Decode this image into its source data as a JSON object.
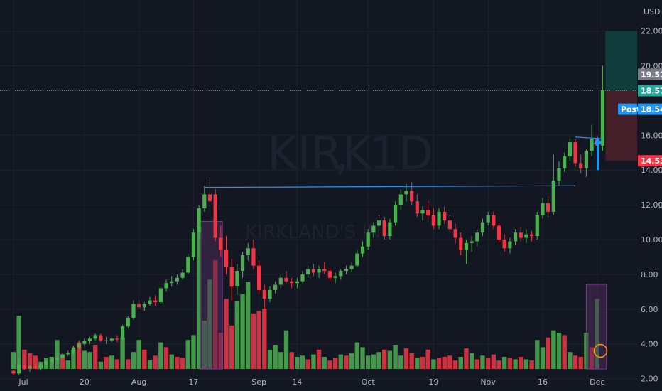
{
  "chart_data": {
    "type": "candlestick",
    "symbol": "KIRK",
    "interval": "1D",
    "company": "KIRKLAND'S INC",
    "currency": "USD",
    "y_ticks": [
      "2.00",
      "4.00",
      "6.00",
      "8.00",
      "10.00",
      "12.00",
      "14.00",
      "16.00",
      "20.00",
      "22.00"
    ],
    "x_ticks": [
      {
        "label": "Jul",
        "i": 0
      },
      {
        "label": "20",
        "i": 13
      },
      {
        "label": "Aug",
        "i": 23
      },
      {
        "label": "17",
        "i": 33
      },
      {
        "label": "Sep",
        "i": 45
      },
      {
        "label": "14",
        "i": 52
      },
      {
        "label": "Oct",
        "i": 65
      },
      {
        "label": "19",
        "i": 77
      },
      {
        "label": "Nov",
        "i": 87
      },
      {
        "label": "16",
        "i": 97
      },
      {
        "label": "Dec",
        "i": 107
      }
    ],
    "candles": [
      [
        2.45,
        2.5,
        2.2,
        2.3
      ],
      [
        2.3,
        3.2,
        2.2,
        2.8
      ],
      [
        2.8,
        2.9,
        2.5,
        2.6
      ],
      [
        2.6,
        2.8,
        2.4,
        2.7
      ],
      [
        2.7,
        2.85,
        2.55,
        2.65
      ],
      [
        2.65,
        2.9,
        2.5,
        2.8
      ],
      [
        2.8,
        3.1,
        2.7,
        3.0
      ],
      [
        3.0,
        3.2,
        2.9,
        3.1
      ],
      [
        3.1,
        3.3,
        3.0,
        3.2
      ],
      [
        3.2,
        3.5,
        3.1,
        3.4
      ],
      [
        3.4,
        3.6,
        3.3,
        3.5
      ],
      [
        3.5,
        3.9,
        3.4,
        3.8
      ],
      [
        3.8,
        4.2,
        3.7,
        4.0
      ],
      [
        4.0,
        4.3,
        3.9,
        4.15
      ],
      [
        4.15,
        4.4,
        4.0,
        4.3
      ],
      [
        4.3,
        4.6,
        4.2,
        4.5
      ],
      [
        4.5,
        4.6,
        4.1,
        4.2
      ],
      [
        4.2,
        4.4,
        4.0,
        4.2
      ],
      [
        4.2,
        4.4,
        4.1,
        4.3
      ],
      [
        4.3,
        4.5,
        4.1,
        4.25
      ],
      [
        4.25,
        5.1,
        4.2,
        5.0
      ],
      [
        5.0,
        5.6,
        4.9,
        5.5
      ],
      [
        5.5,
        6.5,
        5.4,
        6.3
      ],
      [
        6.3,
        6.5,
        6.0,
        6.1
      ],
      [
        6.1,
        6.4,
        5.9,
        6.3
      ],
      [
        6.3,
        6.7,
        6.2,
        6.5
      ],
      [
        6.5,
        6.8,
        6.2,
        6.4
      ],
      [
        6.4,
        7.3,
        6.3,
        7.2
      ],
      [
        7.2,
        7.7,
        7.0,
        7.5
      ],
      [
        7.5,
        7.9,
        7.3,
        7.6
      ],
      [
        7.6,
        8.0,
        7.4,
        7.8
      ],
      [
        7.8,
        8.3,
        7.7,
        8.1
      ],
      [
        8.1,
        9.2,
        8.0,
        9.0
      ],
      [
        9.0,
        10.6,
        8.8,
        10.4
      ],
      [
        10.4,
        12.0,
        10.2,
        11.8
      ],
      [
        11.8,
        13.1,
        11.6,
        12.6
      ],
      [
        12.6,
        13.6,
        11.9,
        12.2
      ],
      [
        12.6,
        12.9,
        9.9,
        10.1
      ],
      [
        10.1,
        10.8,
        9.0,
        9.4
      ],
      [
        9.4,
        10.2,
        8.0,
        8.4
      ],
      [
        8.4,
        8.9,
        6.5,
        7.3
      ],
      [
        7.3,
        8.6,
        6.8,
        8.2
      ],
      [
        8.2,
        9.3,
        7.8,
        9.1
      ],
      [
        9.1,
        9.8,
        8.8,
        9.5
      ],
      [
        9.5,
        10.0,
        8.3,
        8.5
      ],
      [
        8.5,
        8.8,
        6.9,
        7.1
      ],
      [
        7.1,
        7.4,
        5.7,
        6.6
      ],
      [
        6.6,
        7.3,
        6.4,
        7.1
      ],
      [
        7.1,
        7.6,
        6.9,
        7.4
      ],
      [
        7.4,
        8.0,
        7.2,
        7.8
      ],
      [
        7.8,
        8.2,
        7.5,
        7.6
      ],
      [
        7.6,
        7.8,
        7.2,
        7.5
      ],
      [
        7.5,
        7.8,
        7.2,
        7.6
      ],
      [
        7.6,
        8.2,
        7.5,
        8.0
      ],
      [
        8.0,
        8.5,
        7.8,
        8.3
      ],
      [
        8.3,
        8.6,
        7.9,
        8.1
      ],
      [
        8.1,
        8.5,
        7.8,
        8.3
      ],
      [
        8.3,
        8.7,
        8.0,
        8.2
      ],
      [
        8.2,
        8.4,
        7.6,
        7.8
      ],
      [
        7.8,
        8.1,
        7.5,
        7.9
      ],
      [
        7.9,
        8.3,
        7.7,
        8.2
      ],
      [
        8.2,
        8.5,
        8.0,
        8.3
      ],
      [
        8.3,
        8.7,
        8.1,
        8.5
      ],
      [
        8.5,
        9.4,
        8.4,
        9.2
      ],
      [
        9.2,
        9.9,
        9.0,
        9.6
      ],
      [
        9.6,
        10.6,
        9.4,
        10.4
      ],
      [
        10.4,
        11.0,
        10.1,
        10.8
      ],
      [
        10.8,
        11.4,
        10.5,
        11.1
      ],
      [
        11.1,
        11.3,
        10.0,
        10.2
      ],
      [
        10.2,
        11.2,
        10.0,
        11.0
      ],
      [
        11.0,
        12.2,
        10.8,
        12.0
      ],
      [
        12.0,
        12.9,
        11.7,
        12.6
      ],
      [
        12.6,
        13.2,
        12.2,
        12.8
      ],
      [
        12.8,
        13.3,
        12.0,
        12.2
      ],
      [
        12.2,
        12.6,
        11.3,
        11.5
      ],
      [
        11.5,
        11.9,
        11.1,
        11.7
      ],
      [
        11.7,
        12.2,
        11.2,
        11.4
      ],
      [
        11.4,
        11.8,
        10.6,
        10.8
      ],
      [
        10.8,
        11.8,
        10.6,
        11.6
      ],
      [
        11.6,
        11.9,
        10.9,
        11.1
      ],
      [
        11.1,
        11.4,
        10.4,
        10.6
      ],
      [
        10.6,
        10.9,
        9.8,
        10.1
      ],
      [
        10.1,
        10.4,
        9.1,
        9.4
      ],
      [
        9.4,
        10.0,
        8.6,
        9.8
      ],
      [
        9.8,
        10.2,
        9.3,
        9.9
      ],
      [
        9.9,
        10.6,
        9.6,
        10.4
      ],
      [
        10.4,
        11.2,
        10.2,
        11.0
      ],
      [
        11.0,
        11.6,
        10.8,
        11.4
      ],
      [
        11.4,
        11.6,
        10.6,
        10.8
      ],
      [
        10.8,
        11.0,
        9.8,
        10.0
      ],
      [
        10.0,
        10.3,
        9.3,
        9.5
      ],
      [
        9.5,
        10.1,
        9.2,
        9.9
      ],
      [
        9.9,
        10.6,
        9.7,
        10.4
      ],
      [
        10.4,
        10.7,
        9.9,
        10.1
      ],
      [
        10.1,
        10.6,
        9.8,
        10.3
      ],
      [
        10.3,
        10.5,
        9.9,
        10.2
      ],
      [
        10.2,
        11.6,
        10.0,
        11.4
      ],
      [
        11.4,
        12.4,
        11.2,
        12.1
      ],
      [
        12.1,
        12.5,
        11.3,
        11.6
      ],
      [
        11.6,
        14.9,
        11.4,
        13.4
      ],
      [
        13.4,
        14.5,
        13.1,
        14.1
      ],
      [
        14.1,
        15.0,
        13.9,
        14.8
      ],
      [
        14.8,
        15.8,
        14.5,
        15.6
      ],
      [
        15.6,
        15.8,
        14.2,
        14.4
      ],
      [
        14.4,
        14.9,
        13.8,
        14.1
      ],
      [
        14.1,
        15.2,
        13.6,
        15.1
      ],
      [
        15.1,
        16.6,
        14.8,
        15.8
      ],
      [
        15.8,
        16.0,
        15.1,
        15.4
      ],
      [
        15.4,
        20.0,
        15.1,
        18.6
      ]
    ],
    "volume": [
      [
        0.7,
        1
      ],
      [
        2.2,
        1
      ],
      [
        0.8,
        0
      ],
      [
        0.65,
        0
      ],
      [
        0.55,
        0
      ],
      [
        0.3,
        1
      ],
      [
        0.45,
        1
      ],
      [
        0.5,
        1
      ],
      [
        1.2,
        1
      ],
      [
        0.6,
        0
      ],
      [
        0.35,
        1
      ],
      [
        0.8,
        1
      ],
      [
        1.1,
        0
      ],
      [
        0.75,
        1
      ],
      [
        0.7,
        1
      ],
      [
        1.0,
        0
      ],
      [
        0.3,
        1
      ],
      [
        0.5,
        0
      ],
      [
        0.55,
        1
      ],
      [
        0.4,
        0
      ],
      [
        1.3,
        1
      ],
      [
        0.4,
        0
      ],
      [
        0.7,
        1
      ],
      [
        1.2,
        1
      ],
      [
        0.8,
        0
      ],
      [
        0.35,
        1
      ],
      [
        0.55,
        0
      ],
      [
        1.1,
        1
      ],
      [
        0.9,
        0
      ],
      [
        0.6,
        1
      ],
      [
        0.5,
        0
      ],
      [
        0.45,
        0
      ],
      [
        1.2,
        1
      ],
      [
        1.4,
        1
      ],
      [
        5.9,
        1
      ],
      [
        2.0,
        1
      ],
      [
        3.7,
        1
      ],
      [
        4.5,
        0
      ],
      [
        1.5,
        0
      ],
      [
        2.9,
        0
      ],
      [
        1.8,
        0
      ],
      [
        2.8,
        1
      ],
      [
        3.1,
        1
      ],
      [
        3.6,
        1
      ],
      [
        2.3,
        0
      ],
      [
        2.4,
        0
      ],
      [
        2.5,
        0
      ],
      [
        0.8,
        1
      ],
      [
        1.0,
        1
      ],
      [
        0.7,
        1
      ],
      [
        1.6,
        1
      ],
      [
        0.7,
        0
      ],
      [
        0.5,
        1
      ],
      [
        0.55,
        1
      ],
      [
        0.4,
        0
      ],
      [
        0.6,
        1
      ],
      [
        0.8,
        0
      ],
      [
        0.5,
        1
      ],
      [
        0.35,
        0
      ],
      [
        0.45,
        0
      ],
      [
        0.6,
        1
      ],
      [
        0.55,
        0
      ],
      [
        0.65,
        1
      ],
      [
        1.1,
        1
      ],
      [
        0.9,
        1
      ],
      [
        0.55,
        1
      ],
      [
        0.6,
        1
      ],
      [
        0.7,
        1
      ],
      [
        0.8,
        0
      ],
      [
        0.75,
        1
      ],
      [
        1.0,
        1
      ],
      [
        0.55,
        1
      ],
      [
        0.85,
        0
      ],
      [
        0.65,
        0
      ],
      [
        0.45,
        1
      ],
      [
        0.5,
        0
      ],
      [
        0.8,
        0
      ],
      [
        0.4,
        1
      ],
      [
        0.45,
        0
      ],
      [
        0.5,
        0
      ],
      [
        0.55,
        0
      ],
      [
        0.35,
        0
      ],
      [
        0.5,
        1
      ],
      [
        0.85,
        0
      ],
      [
        0.65,
        1
      ],
      [
        0.4,
        0
      ],
      [
        0.55,
        1
      ],
      [
        0.45,
        0
      ],
      [
        0.6,
        0
      ],
      [
        0.35,
        0
      ],
      [
        0.5,
        1
      ],
      [
        0.45,
        0
      ],
      [
        0.4,
        1
      ],
      [
        0.5,
        0
      ],
      [
        0.4,
        1
      ],
      [
        0.35,
        0
      ],
      [
        1.2,
        1
      ],
      [
        0.9,
        1
      ],
      [
        1.3,
        0
      ],
      [
        1.6,
        1
      ],
      [
        1.5,
        1
      ],
      [
        1.4,
        0
      ],
      [
        0.7,
        1
      ],
      [
        0.55,
        0
      ],
      [
        0.5,
        0
      ],
      [
        1.5,
        1
      ],
      [
        0.9,
        0
      ],
      [
        2.9,
        1
      ]
    ],
    "lines": [
      {
        "from": [
          35,
          13.0
        ],
        "to": [
          103,
          13.1
        ],
        "color": "#2196f3"
      },
      {
        "from": [
          103,
          15.9
        ],
        "to": [
          108,
          15.8
        ],
        "color": "#2196f3"
      }
    ],
    "arrow": {
      "i": 107,
      "from": 14.0,
      "to": 15.9,
      "color": "#2196f3"
    },
    "dotted_level": 18.57,
    "position": {
      "from_i": 108,
      "entry": 18.57,
      "target": 22.0,
      "stop": 14.53
    },
    "highlights": [
      {
        "from_i": 34.2,
        "to_i": 38.3,
        "top": 6.1
      },
      {
        "from_i": 105,
        "to_i": 108.7,
        "top": 3.5
      }
    ],
    "circle": {
      "i": 107.6,
      "value": 0.75
    },
    "price_tags": [
      {
        "label": "",
        "value": "19.51",
        "at": 19.51,
        "bg": "#787b86",
        "fg": "#ffffff"
      },
      {
        "label": "",
        "value": "18.57",
        "at": 18.57,
        "bg": "#26a69a",
        "fg": "#ffffff"
      },
      {
        "label": "Post",
        "value": "18.54",
        "at": 17.5,
        "bg": "#2196f3",
        "fg": "#ffffff"
      },
      {
        "label": "",
        "value": "14.53",
        "at": 14.53,
        "bg": "#f23645",
        "fg": "#ffffff"
      }
    ],
    "colors": {
      "background": "#131722",
      "up": "#4caf50",
      "down": "#f23645",
      "volume_up": "#4caf50",
      "volume_down": "#f23645",
      "highlight_fill": "#4a2b5a",
      "highlight_border": "#9c27b0",
      "target_fill": "#12403f",
      "stop_fill": "#4a1f29"
    }
  }
}
